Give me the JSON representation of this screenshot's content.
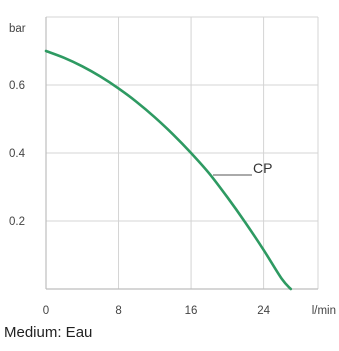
{
  "chart_data": {
    "type": "line",
    "title": "",
    "xlabel": "l/min",
    "ylabel": "bar",
    "xlim": [
      0,
      30
    ],
    "ylim": [
      0,
      0.8
    ],
    "x_ticks": [
      "0",
      "8",
      "16",
      "24"
    ],
    "y_ticks": [
      "0.2",
      "0.4",
      "0.6"
    ],
    "grid": true,
    "series": [
      {
        "name": "CP",
        "color": "#2e9a62",
        "x": [
          0,
          2,
          4,
          6,
          8,
          10,
          12,
          14,
          16,
          18,
          20,
          22,
          24,
          26,
          27
        ],
        "y": [
          0.7,
          0.68,
          0.655,
          0.625,
          0.59,
          0.55,
          0.505,
          0.455,
          0.4,
          0.34,
          0.27,
          0.195,
          0.115,
          0.03,
          0
        ]
      }
    ]
  },
  "caption": "Medium: Eau",
  "colors": {
    "grid": "#d4d4d4",
    "axis": "#bdbdbd",
    "curve": "#2e9a62"
  }
}
